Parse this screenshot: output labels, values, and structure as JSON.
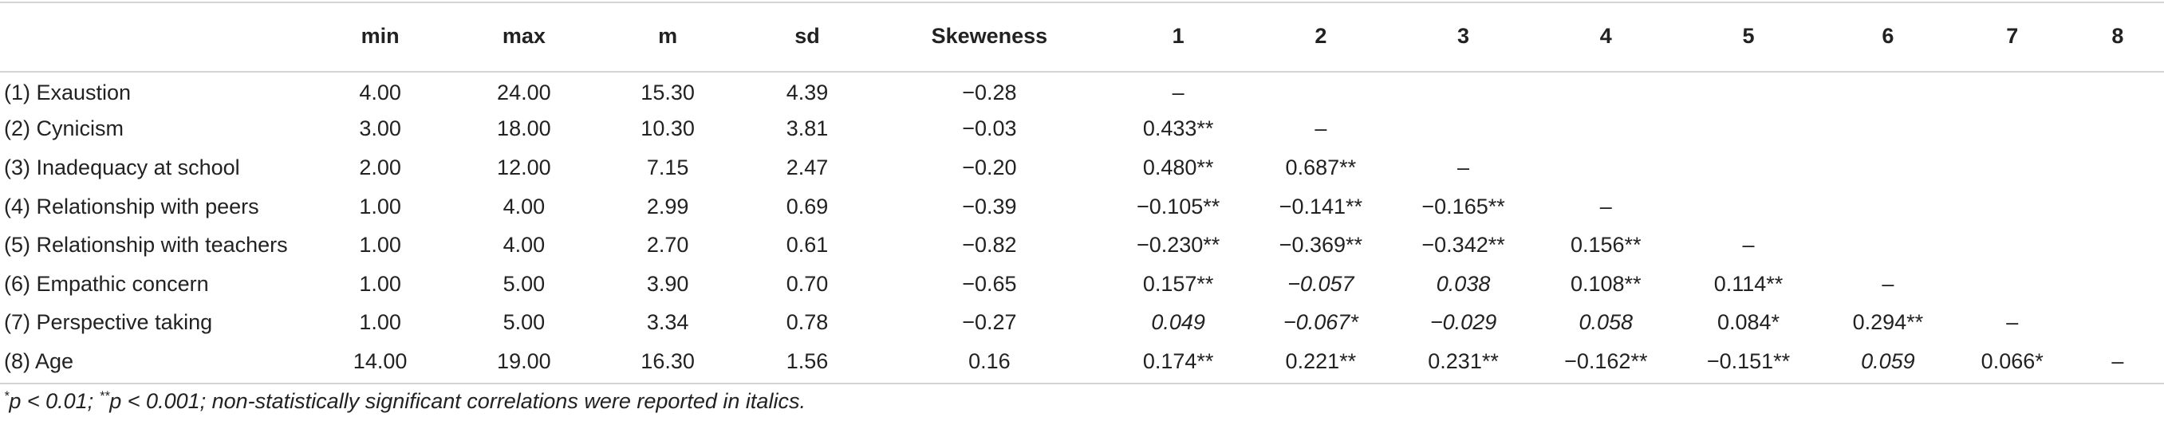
{
  "headers": [
    "",
    "min",
    "max",
    "m",
    "sd",
    "Skeweness",
    "1",
    "2",
    "3",
    "4",
    "5",
    "6",
    "7",
    "8"
  ],
  "rows": [
    {
      "label": "(1) Exaustion",
      "cells": [
        "4.00",
        "24.00",
        "15.30",
        "4.39",
        "−0.28",
        "–",
        "",
        "",
        "",
        "",
        "",
        "",
        ""
      ]
    },
    {
      "label": "(2) Cynicism",
      "cells": [
        "3.00",
        "18.00",
        "10.30",
        "3.81",
        "−0.03",
        "0.433**",
        "–",
        "",
        "",
        "",
        "",
        "",
        ""
      ]
    },
    {
      "label": "(3) Inadequacy at school",
      "cells": [
        "2.00",
        "12.00",
        "7.15",
        "2.47",
        "−0.20",
        "0.480**",
        "0.687**",
        "–",
        "",
        "",
        "",
        "",
        ""
      ]
    },
    {
      "label": "(4) Relationship with peers",
      "cells": [
        "1.00",
        "4.00",
        "2.99",
        "0.69",
        "−0.39",
        "−0.105**",
        "−0.141**",
        "−0.165**",
        "–",
        "",
        "",
        "",
        ""
      ]
    },
    {
      "label": "(5) Relationship with teachers",
      "cells": [
        "1.00",
        "4.00",
        "2.70",
        "0.61",
        "−0.82",
        "−0.230**",
        "−0.369**",
        "−0.342**",
        "0.156**",
        "–",
        "",
        "",
        ""
      ]
    },
    {
      "label": "(6) Empathic concern",
      "cells": [
        "1.00",
        "5.00",
        "3.90",
        "0.70",
        "−0.65",
        "0.157**",
        "−0.057",
        "0.038",
        "0.108**",
        "0.114**",
        "–",
        "",
        ""
      ]
    },
    {
      "label": "(7) Perspective taking",
      "cells": [
        "1.00",
        "5.00",
        "3.34",
        "0.78",
        "−0.27",
        "0.049",
        "−0.067*",
        "−0.029",
        "0.058",
        "0.084*",
        "0.294**",
        "–",
        ""
      ]
    },
    {
      "label": "(8) Age",
      "cells": [
        "14.00",
        "19.00",
        "16.30",
        "1.56",
        "0.16",
        "0.174**",
        "0.221**",
        "0.231**",
        "−0.162**",
        "−0.151**",
        "0.059",
        "0.066*",
        "–"
      ]
    }
  ],
  "footnote": {
    "sup1": "*",
    "text1": "p < 0.01; ",
    "sup2": "**",
    "text2": "p < 0.001; non-statistically significant correlations were reported in italics."
  }
}
